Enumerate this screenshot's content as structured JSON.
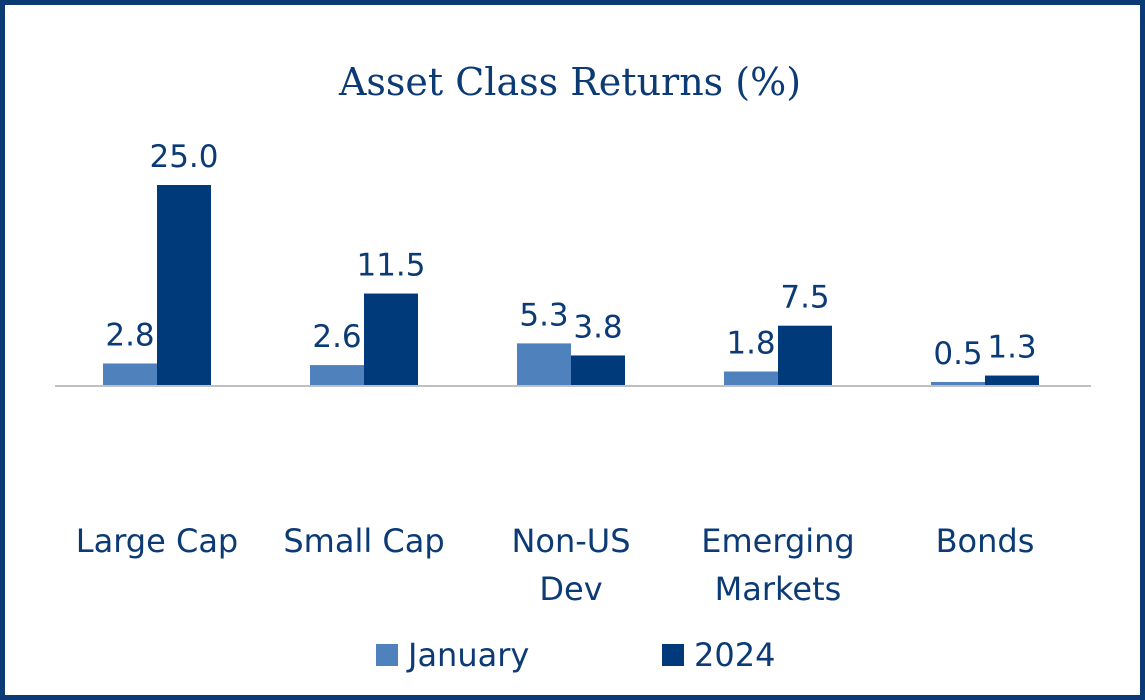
{
  "chart_data": {
    "type": "bar",
    "title": "Asset Class Returns (%)",
    "categories": [
      [
        "Large Cap"
      ],
      [
        "Small Cap"
      ],
      [
        "Non-US",
        "Dev"
      ],
      [
        "Emerging",
        "Markets"
      ],
      [
        "Bonds"
      ]
    ],
    "series": [
      {
        "name": "January",
        "color": "#4f81bd",
        "values": [
          2.8,
          2.6,
          5.3,
          1.8,
          0.5
        ],
        "labels": [
          "2.8",
          "2.6",
          "5.3",
          "1.8",
          "0.5"
        ]
      },
      {
        "name": "2024",
        "color": "#003a7a",
        "values": [
          25.0,
          11.5,
          3.8,
          7.5,
          1.3
        ],
        "labels": [
          "25.0",
          "11.5",
          "3.8",
          "7.5",
          "1.3"
        ]
      }
    ],
    "ylim": [
      0,
      25
    ],
    "grid": false,
    "legend": "bottom-center",
    "accent_color": "#0b3a75",
    "axis_color": "#c0c0c0"
  }
}
